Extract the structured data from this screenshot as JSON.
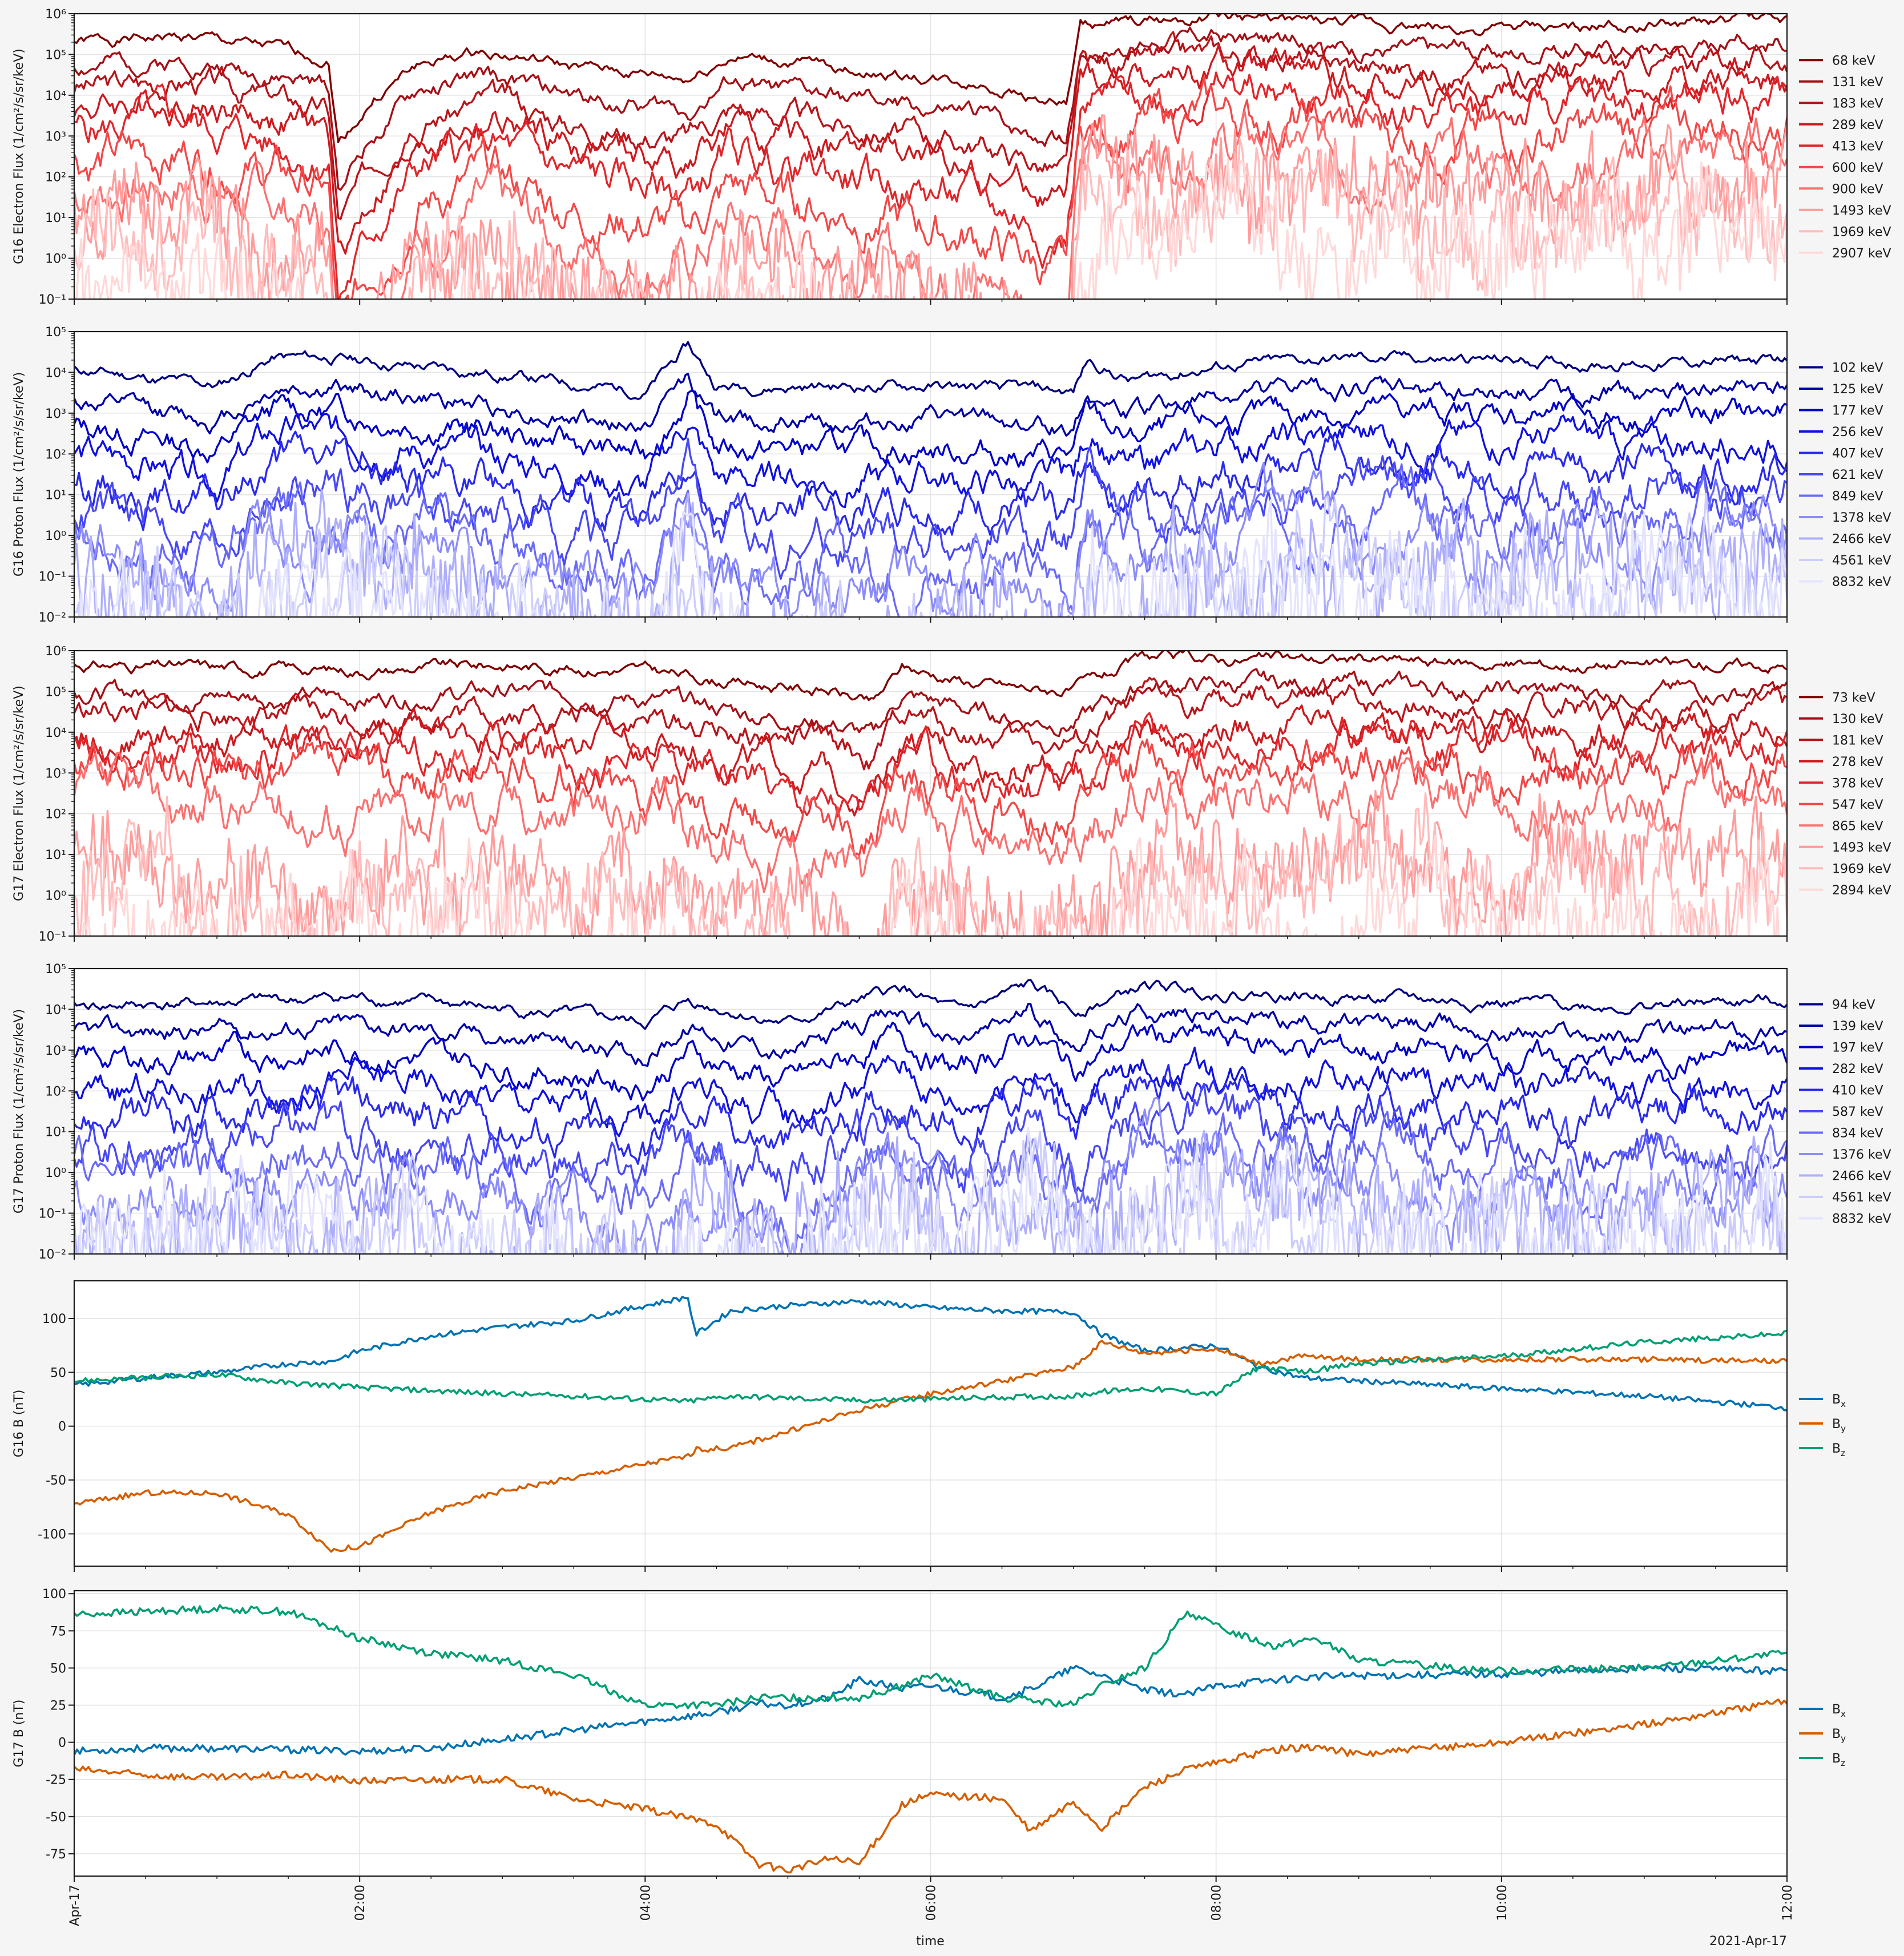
{
  "figure": {
    "xlabel": "time",
    "date_label": "2021-Apr-17",
    "x_ticks": [
      "Apr-17",
      "02:00",
      "04:00",
      "06:00",
      "08:00",
      "10:00",
      "12:00"
    ],
    "background": "#f5f5f5"
  },
  "chart_data": [
    {
      "type": "line",
      "ylabel": "G16 Electron Flux (1/cm²/s/sr/keV)",
      "yscale": "log",
      "ylim": [
        0.1,
        1000000
      ],
      "y_ticks": [
        "10⁻¹",
        "10⁰",
        "10¹",
        "10²",
        "10³",
        "10⁴",
        "10⁵",
        "10⁶"
      ],
      "series": [
        {
          "name": "68 keV",
          "color": "#800000",
          "base": 200000,
          "seed": 1
        },
        {
          "name": "131 keV",
          "color": "#a50f15",
          "base": 50000,
          "seed": 2
        },
        {
          "name": "183 keV",
          "color": "#b8141a",
          "base": 15000,
          "seed": 3
        },
        {
          "name": "289 keV",
          "color": "#cc1a1f",
          "base": 5000,
          "seed": 4
        },
        {
          "name": "413 keV",
          "color": "#e0262b",
          "base": 1300,
          "seed": 5
        },
        {
          "name": "600 keV",
          "color": "#f24848",
          "base": 250,
          "seed": 6
        },
        {
          "name": "900 keV",
          "color": "#fb7070",
          "base": 40,
          "seed": 7
        },
        {
          "name": "1493 keV",
          "color": "#ff9c9c",
          "base": 8,
          "seed": 8
        },
        {
          "name": "1969 keV",
          "color": "#ffbcbc",
          "base": 1.6,
          "seed": 9
        },
        {
          "name": "2907 keV",
          "color": "#ffd9d9",
          "base": 0.25,
          "seed": 10
        }
      ]
    },
    {
      "type": "line",
      "ylabel": "G16 Proton Flux (1/cm²/s/sr/keV)",
      "yscale": "log",
      "ylim": [
        0.01,
        100000
      ],
      "y_ticks": [
        "10⁻²",
        "10⁻¹",
        "10⁰",
        "10¹",
        "10²",
        "10³",
        "10⁴",
        "10⁵"
      ],
      "series": [
        {
          "name": "102 keV",
          "color": "#000080",
          "base": 12000,
          "seed": 11
        },
        {
          "name": "125 keV",
          "color": "#0000a8",
          "base": 2000,
          "seed": 12
        },
        {
          "name": "177 keV",
          "color": "#0000c8",
          "base": 500,
          "seed": 13
        },
        {
          "name": "256 keV",
          "color": "#1010e0",
          "base": 110,
          "seed": 14
        },
        {
          "name": "407 keV",
          "color": "#2a2aee",
          "base": 25,
          "seed": 15
        },
        {
          "name": "621 keV",
          "color": "#4848f4",
          "base": 5,
          "seed": 16
        },
        {
          "name": "849 keV",
          "color": "#6a6af8",
          "base": 1.2,
          "seed": 17
        },
        {
          "name": "1378 keV",
          "color": "#8c8cfa",
          "base": 0.3,
          "seed": 18
        },
        {
          "name": "2466 keV",
          "color": "#aeaefc",
          "base": 0.08,
          "seed": 19
        },
        {
          "name": "4561 keV",
          "color": "#cdcdfd",
          "base": 0.02,
          "seed": 20
        },
        {
          "name": "8832 keV",
          "color": "#e4e4fe",
          "base": 0.01,
          "seed": 21
        }
      ]
    },
    {
      "type": "line",
      "ylabel": "G17 Electron Flux (1/cm²/s/sr/keV)",
      "yscale": "log",
      "ylim": [
        0.1,
        1000000
      ],
      "y_ticks": [
        "10⁻¹",
        "10⁰",
        "10¹",
        "10²",
        "10³",
        "10⁴",
        "10⁵",
        "10⁶"
      ],
      "series": [
        {
          "name": "73 keV",
          "color": "#800000",
          "base": 450000,
          "seed": 31
        },
        {
          "name": "130 keV",
          "color": "#a50f15",
          "base": 100000,
          "seed": 32
        },
        {
          "name": "181 keV",
          "color": "#b8141a",
          "base": 35000,
          "seed": 33
        },
        {
          "name": "278 keV",
          "color": "#cc1a1f",
          "base": 10000,
          "seed": 34
        },
        {
          "name": "378 keV",
          "color": "#e0262b",
          "base": 4000,
          "seed": 35
        },
        {
          "name": "547 keV",
          "color": "#f24848",
          "base": 1100,
          "seed": 36
        },
        {
          "name": "865 keV",
          "color": "#fb7070",
          "base": 200,
          "seed": 37
        },
        {
          "name": "1493 keV",
          "color": "#ff9c9c",
          "base": 6,
          "seed": 38
        },
        {
          "name": "1969 keV",
          "color": "#ffbcbc",
          "base": 1.2,
          "seed": 39
        },
        {
          "name": "2894 keV",
          "color": "#ffd9d9",
          "base": 0.2,
          "seed": 40
        }
      ]
    },
    {
      "type": "line",
      "ylabel": "G17 Proton Flux (1/cm²/s/sr/keV)",
      "yscale": "log",
      "ylim": [
        0.01,
        100000
      ],
      "y_ticks": [
        "10⁻²",
        "10⁻¹",
        "10⁰",
        "10¹",
        "10²",
        "10³",
        "10⁴",
        "10⁵"
      ],
      "series": [
        {
          "name": "94 keV",
          "color": "#000080",
          "base": 12000,
          "seed": 41
        },
        {
          "name": "139 keV",
          "color": "#0000a8",
          "base": 2500,
          "seed": 42
        },
        {
          "name": "197 keV",
          "color": "#0000c8",
          "base": 550,
          "seed": 43
        },
        {
          "name": "282 keV",
          "color": "#1010e0",
          "base": 90,
          "seed": 44
        },
        {
          "name": "410 keV",
          "color": "#2a2aee",
          "base": 20,
          "seed": 45
        },
        {
          "name": "587 keV",
          "color": "#4848f4",
          "base": 4,
          "seed": 46
        },
        {
          "name": "834 keV",
          "color": "#6a6af8",
          "base": 1,
          "seed": 47
        },
        {
          "name": "1376 keV",
          "color": "#8c8cfa",
          "base": 0.2,
          "seed": 48
        },
        {
          "name": "2466 keV",
          "color": "#aeaefc",
          "base": 0.04,
          "seed": 49
        },
        {
          "name": "4561 keV",
          "color": "#cdcdfd",
          "base": 0.015,
          "seed": 50
        },
        {
          "name": "8832 keV",
          "color": "#e4e4fe",
          "base": 0.01,
          "seed": 51
        }
      ]
    },
    {
      "type": "line",
      "ylabel": "G16 B (nT)",
      "yscale": "linear",
      "ylim": [
        -130,
        135
      ],
      "y_ticks": [
        -100,
        -50,
        0,
        50,
        100
      ],
      "x_hours": [
        0,
        0.5,
        1,
        1.5,
        1.8,
        2,
        2.5,
        3,
        3.5,
        4,
        4.3,
        4.35,
        4.6,
        5,
        5.5,
        6,
        6.5,
        7,
        7.2,
        7.5,
        8,
        8.3,
        8.6,
        9,
        10,
        11,
        12
      ],
      "series": [
        {
          "name": "Bx",
          "label_main": "B",
          "label_sub": "x",
          "color": "#0072b2",
          "y": [
            38,
            45,
            50,
            58,
            60,
            70,
            84,
            92,
            98,
            112,
            120,
            85,
            107,
            112,
            116,
            110,
            107,
            106,
            85,
            70,
            75,
            55,
            45,
            42,
            35,
            28,
            17
          ]
        },
        {
          "name": "By",
          "label_main": "B",
          "label_sub": "y",
          "color": "#d55e00",
          "y": [
            -72,
            -62,
            -62,
            -82,
            -115,
            -112,
            -80,
            -60,
            -48,
            -35,
            -28,
            -22,
            -20,
            -5,
            15,
            30,
            42,
            55,
            78,
            68,
            72,
            58,
            65,
            62,
            62,
            62,
            60
          ]
        },
        {
          "name": "Bz",
          "label_main": "B",
          "label_sub": "z",
          "color": "#009e73",
          "y": [
            42,
            45,
            48,
            40,
            38,
            36,
            33,
            30,
            28,
            25,
            23,
            24,
            28,
            26,
            24,
            25,
            27,
            28,
            32,
            35,
            30,
            55,
            50,
            58,
            65,
            78,
            86
          ]
        }
      ]
    },
    {
      "type": "line",
      "ylabel": "G17 B (nT)",
      "yscale": "linear",
      "ylim": [
        -90,
        102
      ],
      "y_ticks": [
        -75,
        -50,
        -25,
        0,
        25,
        50,
        75,
        100
      ],
      "x_hours": [
        0,
        0.5,
        1,
        1.5,
        2,
        2.5,
        3,
        3.5,
        4,
        4.5,
        4.8,
        5,
        5.3,
        5.5,
        5.8,
        6,
        6.5,
        6.7,
        7,
        7.2,
        7.5,
        7.8,
        8,
        8.4,
        8.7,
        9,
        10,
        11,
        12
      ],
      "series": [
        {
          "name": "Bx",
          "label_main": "B",
          "label_sub": "x",
          "color": "#0072b2",
          "y": [
            -6,
            -4,
            -4,
            -5,
            -6,
            -4,
            2,
            8,
            14,
            20,
            26,
            25,
            30,
            42,
            36,
            38,
            30,
            36,
            50,
            45,
            35,
            32,
            38,
            42,
            44,
            45,
            46,
            50,
            48
          ]
        },
        {
          "name": "By",
          "label_main": "B",
          "label_sub": "y",
          "color": "#d55e00",
          "y": [
            -18,
            -22,
            -24,
            -22,
            -26,
            -25,
            -25,
            -38,
            -45,
            -55,
            -82,
            -86,
            -78,
            -82,
            -42,
            -35,
            -38,
            -60,
            -40,
            -58,
            -30,
            -18,
            -14,
            -5,
            -3,
            -8,
            0,
            12,
            28
          ]
        },
        {
          "name": "Bz",
          "label_main": "B",
          "label_sub": "z",
          "color": "#009e73",
          "y": [
            86,
            88,
            90,
            88,
            70,
            60,
            55,
            45,
            25,
            25,
            30,
            30,
            30,
            30,
            38,
            45,
            30,
            28,
            25,
            38,
            50,
            88,
            78,
            65,
            70,
            55,
            48,
            50,
            60
          ]
        }
      ]
    }
  ]
}
